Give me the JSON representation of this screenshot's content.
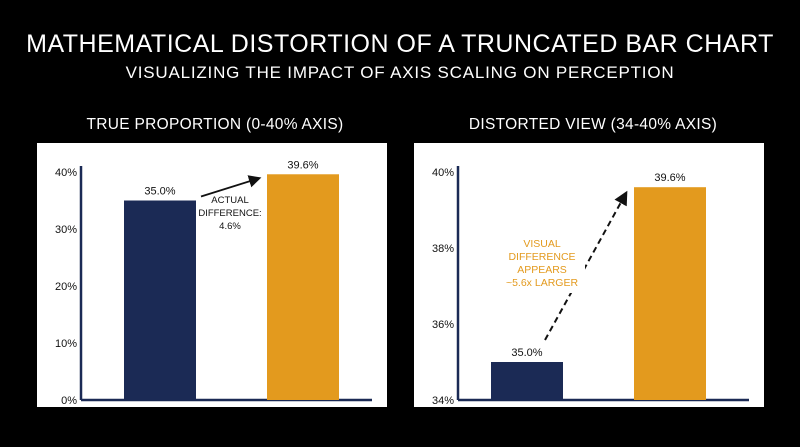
{
  "title": "MATHEMATICAL DISTORTION OF A TRUNCATED BAR CHART",
  "subtitle": "VISUALIZING THE IMPACT OF AXIS SCALING ON PERCEPTION",
  "colors": {
    "navy": "#1b2a55",
    "gold": "#e39a1e",
    "axis": "#1b2a55",
    "text": "#111111",
    "annotation_gold": "#e39a1e"
  },
  "chart_data": [
    {
      "type": "bar",
      "title": "TRUE PROPORTION (0-40% AXIS)",
      "categories": [
        "",
        ""
      ],
      "values": [
        35.0,
        39.6
      ],
      "value_labels": [
        "35.0%",
        "39.6%"
      ],
      "colors": [
        "#1b2a55",
        "#e39a1e"
      ],
      "ylim": [
        0,
        40
      ],
      "yticks": [
        0,
        10,
        20,
        30,
        40
      ],
      "ytick_labels": [
        "0%",
        "10%",
        "20%",
        "30%",
        "40%"
      ],
      "annotation": {
        "lines": [
          "ACTUAL",
          "DIFFERENCE:",
          "4.6%"
        ]
      },
      "grid": false
    },
    {
      "type": "bar",
      "title": "DISTORTED VIEW (34-40% AXIS)",
      "categories": [
        "",
        ""
      ],
      "values": [
        35.0,
        39.6
      ],
      "value_labels": [
        "35.0%",
        "39.6%"
      ],
      "colors": [
        "#1b2a55",
        "#e39a1e"
      ],
      "ylim": [
        34,
        40
      ],
      "yticks": [
        34,
        36,
        38,
        40
      ],
      "ytick_labels": [
        "34%",
        "36%",
        "38%",
        "40%"
      ],
      "annotation": {
        "lines": [
          "VISUAL",
          "DIFFERENCE",
          "APPEARS",
          "~5.6x LARGER"
        ]
      },
      "grid": false
    }
  ]
}
